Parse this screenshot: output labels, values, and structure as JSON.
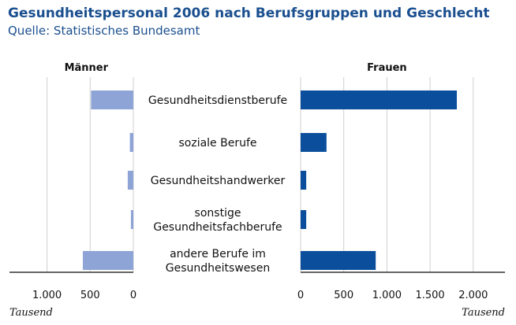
{
  "chart_data": {
    "type": "bar",
    "orientation": "horizontal",
    "layout": "population-pyramid",
    "title": "Gesundheitspersonal 2006 nach Berufsgruppen und Geschlecht",
    "subtitle": "Quelle: Statistisches Bundesamt",
    "unit_label": "Tausend",
    "categories": [
      [
        "Gesundheitsdienstberufe"
      ],
      [
        "soziale Berufe"
      ],
      [
        "Gesundheitshandwerker"
      ],
      [
        "sonstige",
        "Gesundheitsfachberufe"
      ],
      [
        "andere Berufe im",
        "Gesundheitswesen"
      ]
    ],
    "series": [
      {
        "name": "Männer",
        "side": "left",
        "color": "#8ea3d6",
        "values": [
          490,
          40,
          65,
          28,
          585
        ],
        "xlim": [
          0,
          1450
        ],
        "ticks": [
          0,
          500,
          1000
        ],
        "tick_labels": [
          "0",
          "500",
          "1.000"
        ]
      },
      {
        "name": "Frauen",
        "side": "right",
        "color": "#0b4f9c",
        "values": [
          1810,
          300,
          65,
          65,
          870
        ],
        "xlim": [
          0,
          2400
        ],
        "ticks": [
          0,
          500,
          1000,
          1500,
          2000
        ],
        "tick_labels": [
          "0",
          "500",
          "1.000",
          "1.500",
          "2.000"
        ]
      }
    ],
    "grid": true
  }
}
